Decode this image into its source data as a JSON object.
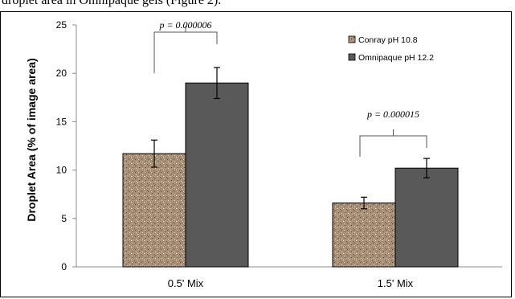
{
  "caption_fragment": "droplet area in Omnipaque gels (Figure 2).",
  "colors": {
    "conray": "#a89078",
    "omnipaque": "#595959"
  },
  "chart_data": {
    "type": "bar",
    "title": "",
    "xlabel": "",
    "ylabel": "Droplet Area (% of image area)",
    "ylim": [
      0,
      25
    ],
    "yticks": [
      "0",
      "5",
      "10",
      "15",
      "20",
      "25"
    ],
    "categories": [
      "0.5' Mix",
      "1.5' Mix"
    ],
    "series": [
      {
        "name": "Conray pH 10.8",
        "values": [
          11.7,
          6.6
        ],
        "errors": [
          1.4,
          0.6
        ]
      },
      {
        "name": "Omnipaque pH 12.2",
        "values": [
          19.0,
          10.2
        ],
        "errors": [
          1.6,
          1.0
        ]
      }
    ],
    "annotations": [
      "p = 0.000006",
      "p = 0.000015"
    ],
    "legend_position": "top-right",
    "grid": false
  }
}
